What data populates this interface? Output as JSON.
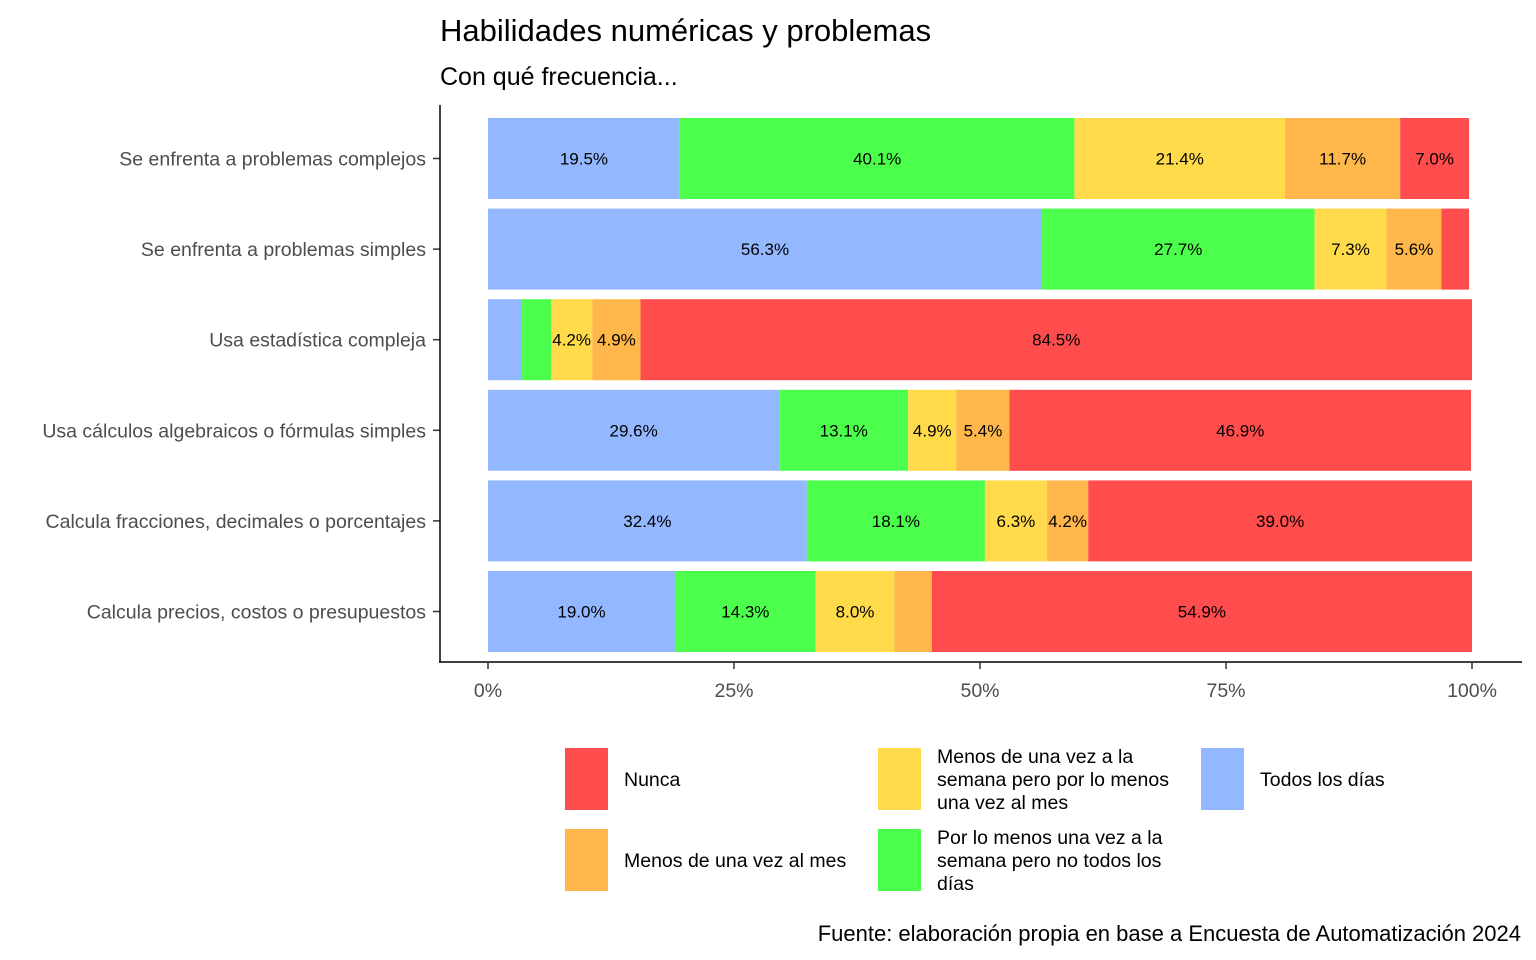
{
  "chart_data": {
    "type": "bar",
    "orientation": "horizontal",
    "stacked": true,
    "title": "Habilidades numéricas y problemas",
    "subtitle": "Con qué frecuencia...",
    "caption": "Fuente: elaboración propia en base a Encuesta de Automatización 2024",
    "xlim": [
      0,
      100
    ],
    "x_ticks": [
      "0%",
      "25%",
      "50%",
      "75%",
      "100%"
    ],
    "categories": [
      "Se enfrenta a problemas complejos",
      "Se enfrenta a problemas simples",
      "Usa estadística compleja",
      "Usa cálculos algebraicos o fórmulas simples",
      "Calcula fracciones, decimales o porcentajes",
      "Calcula precios, costos o presupuestos"
    ],
    "series": [
      {
        "name": "Todos los días",
        "color": "#94b8ff",
        "values": [
          19.5,
          56.3,
          3.4,
          29.6,
          32.4,
          19.0
        ],
        "labels": [
          "19.5%",
          "56.3%",
          "",
          "29.6%",
          "32.4%",
          "19.0%"
        ]
      },
      {
        "name": "Por lo menos una vez a la semana pero no todos los días",
        "color": "#4cff4c",
        "values": [
          40.1,
          27.7,
          3.0,
          13.1,
          18.1,
          14.3
        ],
        "labels": [
          "40.1%",
          "27.7%",
          "",
          "13.1%",
          "18.1%",
          "14.3%"
        ]
      },
      {
        "name": "Menos de una vez a la semana pero por lo menos una vez al mes",
        "color": "#ffdb4c",
        "values": [
          21.4,
          7.3,
          4.2,
          4.9,
          6.3,
          8.0
        ],
        "labels": [
          "21.4%",
          "7.3%",
          "4.2%",
          "4.9%",
          "6.3%",
          "8.0%"
        ]
      },
      {
        "name": "Menos de una vez al mes",
        "color": "#ffb74c",
        "values": [
          11.7,
          5.6,
          4.9,
          5.4,
          4.2,
          3.8
        ],
        "labels": [
          "11.7%",
          "5.6%",
          "4.9%",
          "5.4%",
          "4.2%",
          ""
        ]
      },
      {
        "name": "Nunca",
        "color": "#ff4c4c",
        "values": [
          7.0,
          2.8,
          84.5,
          46.9,
          39.0,
          54.9
        ],
        "labels": [
          "7.0%",
          "",
          "84.5%",
          "46.9%",
          "39.0%",
          "54.9%"
        ]
      }
    ],
    "legend": {
      "position": "bottom",
      "entries": [
        {
          "label": "Nunca",
          "color": "#ff4c4c",
          "lines": [
            "Nunca"
          ]
        },
        {
          "label": "Menos de una vez al mes",
          "color": "#ffb74c",
          "lines": [
            "Menos de una vez al mes"
          ]
        },
        {
          "label": "Menos de una vez a la semana pero por lo menos una vez al mes",
          "color": "#ffdb4c",
          "lines": [
            "Menos de una vez a la",
            "semana pero por lo menos",
            "una vez al mes"
          ]
        },
        {
          "label": "Por lo menos una vez a la semana pero no todos los días",
          "color": "#4cff4c",
          "lines": [
            "Por lo menos una vez a la",
            "semana pero no todos los",
            "días"
          ]
        },
        {
          "label": "Todos los días",
          "color": "#94b8ff",
          "lines": [
            "Todos los días"
          ]
        }
      ]
    }
  }
}
